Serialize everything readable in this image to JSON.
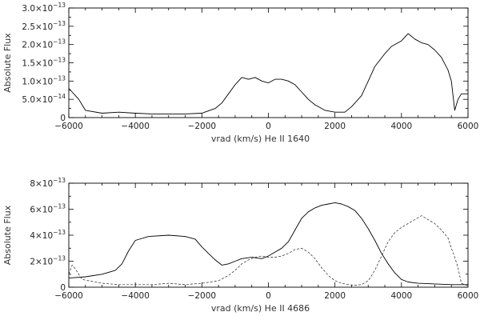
{
  "chart_data": [
    {
      "type": "line",
      "xlabel": "vrad (km/s)   He II 1640",
      "ylabel": "Absolute Flux",
      "xlim": [
        -6000,
        6000
      ],
      "ylim": [
        0,
        3e-13
      ],
      "x_ticks": [
        -6000,
        -4000,
        -2000,
        0,
        2000,
        4000,
        6000
      ],
      "x_tick_labels": [
        "−6000",
        "−4000",
        "−2000",
        "0",
        "2000",
        "4000",
        "6000"
      ],
      "y_ticks": [
        {
          "value": 0,
          "mant": "0",
          "exp": ""
        },
        {
          "value": 5e-14,
          "mant": "5.0×10",
          "exp": "−14"
        },
        {
          "value": 1e-13,
          "mant": "1.0×10",
          "exp": "−13"
        },
        {
          "value": 1.5e-13,
          "mant": "1.5×10",
          "exp": "−13"
        },
        {
          "value": 2e-13,
          "mant": "2.0×10",
          "exp": "−13"
        },
        {
          "value": 2.5e-13,
          "mant": "2.5×10",
          "exp": "−13"
        },
        {
          "value": 3e-13,
          "mant": "3.0×10",
          "exp": "−13"
        }
      ],
      "series": [
        {
          "style": "solid",
          "x": [
            -6000,
            -5900,
            -5800,
            -5700,
            -5500,
            -5000,
            -4500,
            -4000,
            -3500,
            -3000,
            -2500,
            -2000,
            -1600,
            -1400,
            -1200,
            -1000,
            -800,
            -600,
            -400,
            -200,
            0,
            200,
            400,
            600,
            800,
            1000,
            1200,
            1400,
            1700,
            2000,
            2300,
            2500,
            2800,
            3000,
            3200,
            3500,
            3700,
            4000,
            4200,
            4400,
            4600,
            4800,
            5000,
            5200,
            5400,
            5500,
            5600,
            5700,
            5800,
            6000
          ],
          "y": [
            8e-14,
            7e-14,
            6e-14,
            5e-14,
            2e-14,
            1.2e-14,
            1.5e-14,
            1.2e-14,
            1e-14,
            1e-14,
            1e-14,
            1.2e-14,
            2.5e-14,
            4e-14,
            6.5e-14,
            9e-14,
            1.1e-13,
            1.05e-13,
            1.1e-13,
            1e-13,
            9.5e-14,
            1.05e-13,
            1.05e-13,
            1e-13,
            9e-14,
            7e-14,
            5e-14,
            3.5e-14,
            2e-14,
            1.5e-14,
            1.5e-14,
            3e-14,
            6e-14,
            1e-13,
            1.4e-13,
            1.75e-13,
            1.95e-13,
            2.1e-13,
            2.3e-13,
            2.15e-13,
            2.05e-13,
            2e-13,
            1.85e-13,
            1.65e-13,
            1.3e-13,
            1e-13,
            2e-14,
            5e-14,
            6.5e-14,
            6.5e-14
          ]
        }
      ]
    },
    {
      "type": "line",
      "xlabel": "vrad (km/s)  He II 4686",
      "ylabel": "Absolute Flux",
      "xlim": [
        -6000,
        6000
      ],
      "ylim": [
        0,
        8e-13
      ],
      "x_ticks": [
        -6000,
        -4000,
        -2000,
        0,
        2000,
        4000,
        6000
      ],
      "x_tick_labels": [
        "−6000",
        "−4000",
        "−2000",
        "0",
        "2000",
        "4000",
        "6000"
      ],
      "y_ticks": [
        {
          "value": 0,
          "mant": "0",
          "exp": ""
        },
        {
          "value": 2e-13,
          "mant": "2×10",
          "exp": "−13"
        },
        {
          "value": 4e-13,
          "mant": "4×10",
          "exp": "−13"
        },
        {
          "value": 6e-13,
          "mant": "6×10",
          "exp": "−13"
        },
        {
          "value": 8e-13,
          "mant": "8×10",
          "exp": "−13"
        }
      ],
      "series": [
        {
          "style": "solid",
          "x": [
            -6000,
            -5500,
            -5000,
            -4600,
            -4400,
            -4200,
            -4000,
            -3600,
            -3000,
            -2500,
            -2200,
            -2000,
            -1800,
            -1600,
            -1400,
            -1200,
            -1000,
            -800,
            -500,
            -200,
            0,
            200,
            400,
            600,
            800,
            1000,
            1200,
            1400,
            1600,
            1800,
            2000,
            2200,
            2400,
            2600,
            2800,
            3000,
            3200,
            3400,
            3600,
            3800,
            4000,
            4200,
            4500,
            5000,
            5500,
            6000
          ],
          "y": [
            7e-14,
            8e-14,
            1e-13,
            1.3e-13,
            1.8e-13,
            2.8e-13,
            3.6e-13,
            3.9e-13,
            4e-13,
            3.9e-13,
            3.7e-13,
            3.1e-13,
            2.6e-13,
            2.1e-13,
            1.7e-13,
            1.8e-13,
            2e-13,
            2.2e-13,
            2.3e-13,
            2.2e-13,
            2.4e-13,
            2.7e-13,
            3e-13,
            3.5e-13,
            4.4e-13,
            5.3e-13,
            5.8e-13,
            6.1e-13,
            6.3e-13,
            6.4e-13,
            6.5e-13,
            6.4e-13,
            6.2e-13,
            5.9e-13,
            5.3e-13,
            4.5e-13,
            3.6e-13,
            2.6e-13,
            1.8e-13,
            1.1e-13,
            6e-14,
            4e-14,
            3e-14,
            2.5e-14,
            2e-14,
            2e-14
          ]
        },
        {
          "style": "dashed",
          "x": [
            -6000,
            -5900,
            -5800,
            -5600,
            -5000,
            -4500,
            -4000,
            -3500,
            -3000,
            -2500,
            -2000,
            -1500,
            -1200,
            -1000,
            -800,
            -600,
            -400,
            -200,
            0,
            200,
            400,
            600,
            800,
            1000,
            1200,
            1400,
            1600,
            1800,
            2000,
            2200,
            2400,
            2600,
            2800,
            3000,
            3200,
            3400,
            3600,
            3800,
            4000,
            4200,
            4400,
            4600,
            4800,
            5000,
            5200,
            5400,
            5500,
            5600,
            5700,
            5800,
            6000
          ],
          "y": [
            1e-13,
            1.7e-13,
            1.4e-13,
            6e-14,
            3e-14,
            2e-14,
            2e-14,
            2e-14,
            3e-14,
            2e-14,
            3e-14,
            5e-14,
            9e-14,
            1.3e-13,
            1.8e-13,
            2.1e-13,
            2.3e-13,
            2.4e-13,
            2.3e-13,
            2.3e-13,
            2.4e-13,
            2.6e-13,
            2.9e-13,
            3e-13,
            2.7e-13,
            2.2e-13,
            1.5e-13,
            9e-14,
            5e-14,
            3e-14,
            2e-14,
            1.5e-14,
            2e-14,
            5e-14,
            1.3e-13,
            2.4e-13,
            3.5e-13,
            4.2e-13,
            4.6e-13,
            4.9e-13,
            5.2e-13,
            5.5e-13,
            5.2e-13,
            4.9e-13,
            4.4e-13,
            3.8e-13,
            3e-13,
            2.3e-13,
            1.5e-13,
            3e-14,
            1e-14
          ]
        }
      ]
    }
  ]
}
